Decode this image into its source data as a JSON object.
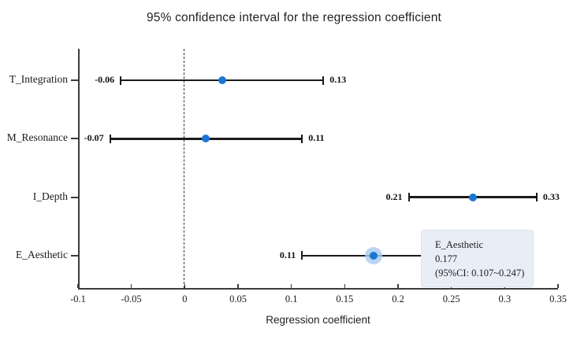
{
  "chart_data": {
    "type": "scatter",
    "subtype": "forest-plot-with-error-bars",
    "title": "95% confidence interval for the regression coefficient",
    "xlabel": "Regression coefficient",
    "xlim": [
      -0.1,
      0.35
    ],
    "x_tick_values": [
      -0.1,
      -0.05,
      0,
      0.05,
      0.1,
      0.15,
      0.2,
      0.25,
      0.3,
      0.35
    ],
    "x_tick_labels": [
      "-0.1",
      "-0.05",
      "0",
      "0.05",
      "0.1",
      "0.15",
      "0.2",
      "0.25",
      "0.3",
      "0.35"
    ],
    "categories": [
      "T_Integration",
      "M_Resonance",
      "I_Depth",
      "E_Aesthetic"
    ],
    "reference_line_x": 0,
    "grid": false,
    "points": [
      {
        "label": "T_Integration",
        "estimate": 0.035,
        "ci_low": -0.06,
        "ci_high": 0.13,
        "ci_low_label": "-0.06",
        "ci_high_label": "0.13",
        "highlighted": false
      },
      {
        "label": "M_Resonance",
        "estimate": 0.02,
        "ci_low": -0.07,
        "ci_high": 0.11,
        "ci_low_label": "-0.07",
        "ci_high_label": "0.11",
        "highlighted": false
      },
      {
        "label": "I_Depth",
        "estimate": 0.27,
        "ci_low": 0.21,
        "ci_high": 0.33,
        "ci_low_label": "0.21",
        "ci_high_label": "0.33",
        "highlighted": false
      },
      {
        "label": "E_Aesthetic",
        "estimate": 0.177,
        "ci_low": 0.11,
        "ci_high": 0.247,
        "ci_low_label": "0.11",
        "ci_high_label": "",
        "highlighted": true
      }
    ],
    "tooltip": {
      "title": "E_Aesthetic",
      "value": "0.177",
      "ci": "(95%CI: 0.107~0.247)"
    },
    "colors": {
      "point": "#1b76d2",
      "halo": "#a9ccf1",
      "whisker": "#1a1a1a",
      "axis": "#3c3c3c",
      "reference_line": "#333333",
      "tooltip_bg": "#e9edf6",
      "tooltip_border": "#dbe1ef"
    }
  }
}
